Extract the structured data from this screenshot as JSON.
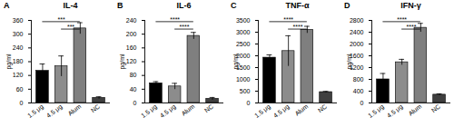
{
  "chart_data": [
    {
      "type": "bar",
      "panel": "A",
      "title": "IL-4",
      "y_label": "pg/ml",
      "categories": [
        "1.5 μg",
        "4.5 μg",
        "Alum",
        "NC"
      ],
      "values": [
        140,
        160,
        325,
        22
      ],
      "errors": [
        30,
        45,
        25,
        5
      ],
      "colors": [
        "#000000",
        "#8c8c8c",
        "#7f7f7f",
        "#3f3f3f"
      ],
      "ylim": [
        0,
        360
      ],
      "yticks": [
        0,
        60,
        120,
        180,
        240,
        300,
        360
      ],
      "annotations": [
        {
          "from": "1.5 μg",
          "to": "Alum",
          "text": "***"
        },
        {
          "from": "4.5 μg",
          "to": "Alum",
          "text": "***"
        }
      ]
    },
    {
      "type": "bar",
      "panel": "B",
      "title": "IL-6",
      "y_label": "pg/ml",
      "categories": [
        "1.5 μg",
        "4.5 μg",
        "Alum",
        "NC"
      ],
      "values": [
        57,
        48,
        195,
        12
      ],
      "errors": [
        5,
        9,
        10,
        4
      ],
      "colors": [
        "#000000",
        "#8c8c8c",
        "#7f7f7f",
        "#3f3f3f"
      ],
      "ylim": [
        0,
        240
      ],
      "yticks": [
        0,
        40,
        80,
        120,
        160,
        200,
        240
      ],
      "annotations": [
        {
          "from": "1.5 μg",
          "to": "Alum",
          "text": "****"
        },
        {
          "from": "4.5 μg",
          "to": "Alum",
          "text": "****"
        }
      ]
    },
    {
      "type": "bar",
      "panel": "C",
      "title": "TNF-α",
      "y_label": "pg/ml",
      "categories": [
        "1.5 μg",
        "4.5 μg",
        "Alum",
        "NC"
      ],
      "values": [
        1920,
        2200,
        3100,
        460
      ],
      "errors": [
        120,
        650,
        150,
        30
      ],
      "colors": [
        "#000000",
        "#8c8c8c",
        "#7f7f7f",
        "#3f3f3f"
      ],
      "ylim": [
        0,
        3500
      ],
      "yticks": [
        0,
        500,
        1000,
        1500,
        2000,
        2500,
        3000,
        3500
      ],
      "annotations": [
        {
          "from": "1.5 μg",
          "to": "Alum",
          "text": "****"
        },
        {
          "from": "4.5 μg",
          "to": "Alum",
          "text": "****"
        }
      ]
    },
    {
      "type": "bar",
      "panel": "D",
      "title": "IFN-γ",
      "y_label": "pg/ml",
      "categories": [
        "1.5 μg",
        "4.5 μg",
        "Alum",
        "NC"
      ],
      "values": [
        800,
        1380,
        2550,
        280
      ],
      "errors": [
        200,
        100,
        150,
        30
      ],
      "colors": [
        "#000000",
        "#8c8c8c",
        "#7f7f7f",
        "#3f3f3f"
      ],
      "ylim": [
        0,
        2800
      ],
      "yticks": [
        0,
        400,
        800,
        1200,
        1600,
        2000,
        2400,
        2800
      ],
      "annotations": [
        {
          "from": "1.5 μg",
          "to": "Alum",
          "text": "****"
        },
        {
          "from": "4.5 μg",
          "to": "Alum",
          "text": "****"
        }
      ]
    }
  ]
}
